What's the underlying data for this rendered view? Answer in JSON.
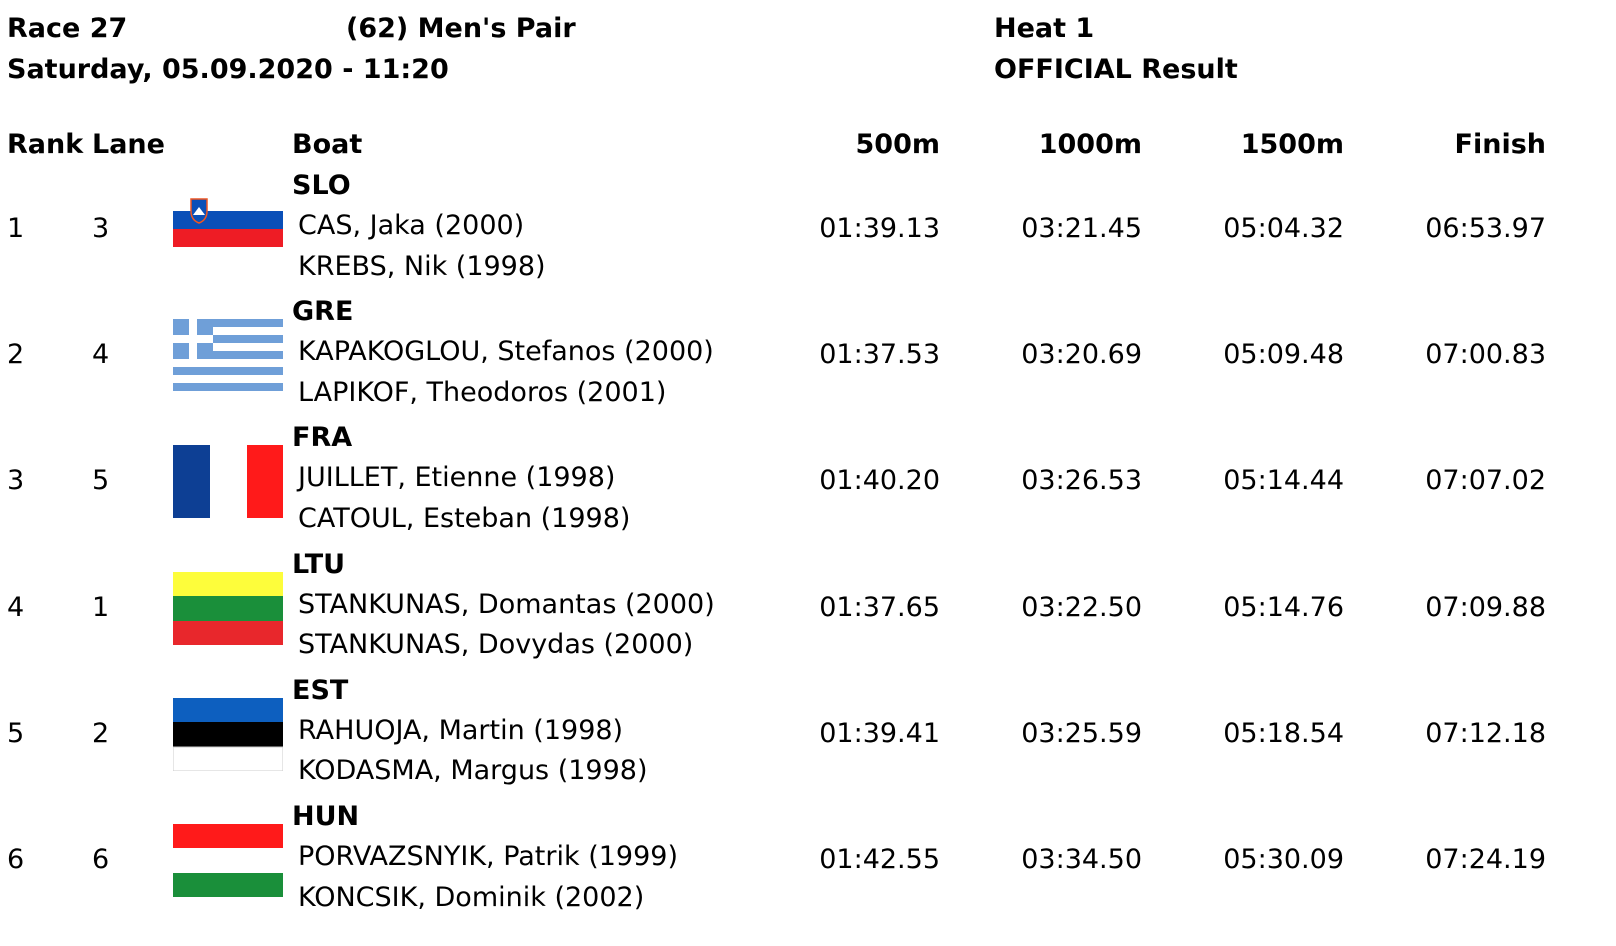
{
  "header": {
    "race": "Race 27",
    "event": "(62) Men's Pair",
    "heat": "Heat 1",
    "date": "Saturday, 05.09.2020 - 11:20",
    "status": "OFFICIAL Result"
  },
  "table": {
    "columns": [
      "Rank",
      "Lane",
      "Boat",
      "500m",
      "1000m",
      "1500m",
      "Finish"
    ],
    "rows": [
      {
        "rank": "1",
        "lane": "3",
        "country": "SLO",
        "crew": [
          "CAS, Jaka (2000)",
          "KREBS, Nik (1998)"
        ],
        "times": [
          "01:39.13",
          "03:21.45",
          "05:04.32",
          "06:53.97"
        ]
      },
      {
        "rank": "2",
        "lane": "4",
        "country": "GRE",
        "crew": [
          "KAPAKOGLOU, Stefanos (2000)",
          "LAPIKOF, Theodoros (2001)"
        ],
        "times": [
          "01:37.53",
          "03:20.69",
          "05:09.48",
          "07:00.83"
        ]
      },
      {
        "rank": "3",
        "lane": "5",
        "country": "FRA",
        "crew": [
          "JUILLET, Etienne (1998)",
          "CATOUL, Esteban (1998)"
        ],
        "times": [
          "01:40.20",
          "03:26.53",
          "05:14.44",
          "07:07.02"
        ]
      },
      {
        "rank": "4",
        "lane": "1",
        "country": "LTU",
        "crew": [
          "STANKUNAS, Domantas (2000)",
          "STANKUNAS, Dovydas (2000)"
        ],
        "times": [
          "01:37.65",
          "03:22.50",
          "05:14.76",
          "07:09.88"
        ]
      },
      {
        "rank": "5",
        "lane": "2",
        "country": "EST",
        "crew": [
          "RAHUOJA, Martin (1998)",
          "KODASMA, Margus (1998)"
        ],
        "times": [
          "01:39.41",
          "03:25.59",
          "05:18.54",
          "07:12.18"
        ]
      },
      {
        "rank": "6",
        "lane": "6",
        "country": "HUN",
        "crew": [
          "PORVAZSNYIK, Patrik (1999)",
          "KONCSIK, Dominik (2002)"
        ],
        "times": [
          "01:42.55",
          "03:34.50",
          "05:30.09",
          "07:24.19"
        ]
      }
    ]
  }
}
